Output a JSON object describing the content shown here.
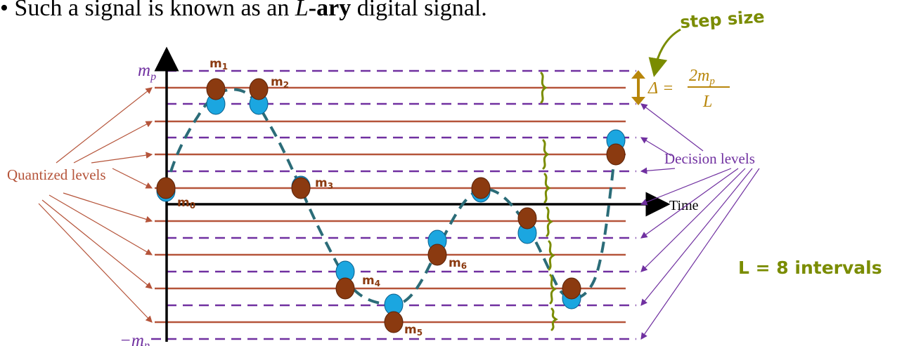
{
  "heading": {
    "bullet": "•",
    "prefix": "Such a signal is known as an ",
    "emph_letter": "L",
    "emph_word": "-ary",
    "suffix": " digital signal."
  },
  "axis": {
    "top_label": "m",
    "top_sub": "p",
    "bottom_label": "−m",
    "bottom_sub": "p",
    "time_label": "Time"
  },
  "labels": {
    "quantized": "Quantized levels",
    "decision": "Decision levels"
  },
  "step": {
    "annotation": "step size",
    "delta": "Δ",
    "equals": "=",
    "numerator": "2m",
    "numerator_sub": "p",
    "denominator": "L"
  },
  "intervals_note": "L = 8 intervals",
  "samples": [
    {
      "label": "m",
      "sub": "0"
    },
    {
      "label": "m",
      "sub": "1"
    },
    {
      "label": "m",
      "sub": "2"
    },
    {
      "label": "m",
      "sub": "3"
    },
    {
      "label": "m",
      "sub": "4"
    },
    {
      "label": "m",
      "sub": "5"
    },
    {
      "label": "m",
      "sub": "6"
    }
  ],
  "colors": {
    "quantized_line": "#b5543a",
    "decision_line": "#7030a0",
    "signal": "#2b6c78",
    "sample_actual": "#1ba6e0",
    "sample_quantized": "#8b3a10",
    "annotation": "#b8860b",
    "handwriting_green": "#7a8c00",
    "handwriting_brown": "#8b3a10"
  }
}
